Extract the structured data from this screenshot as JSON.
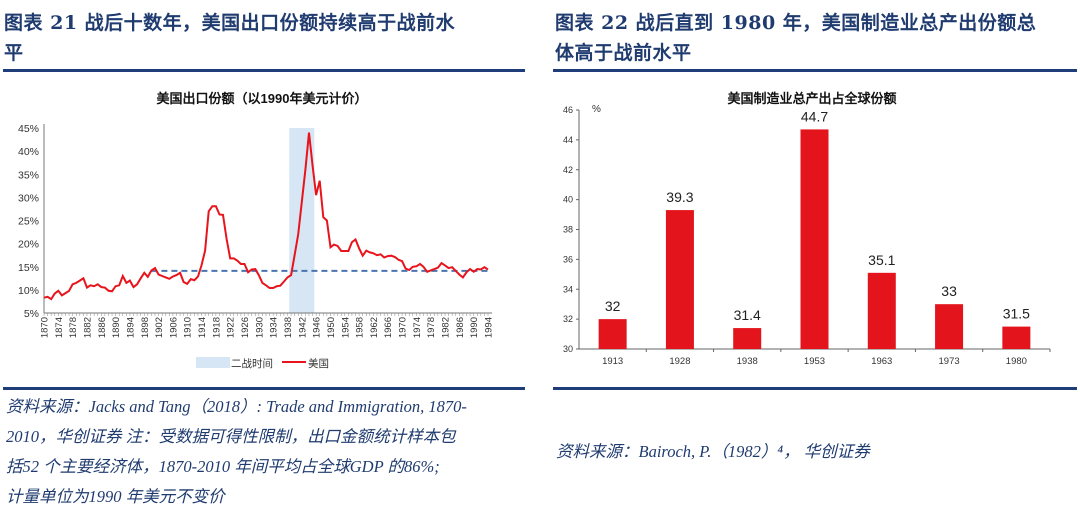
{
  "left": {
    "heading": "图表 21   战后十数年，美国出口份额持续高于战前水平",
    "heading_line1": "图表 21   战后十数年，美国出口份额持续高于战前水",
    "heading_line2": "平",
    "note_lines": [
      "资料来源：Jacks and Tang（2018）: Trade and Immigration, 1870-",
      "2010，华创证券   注：受数据可得性限制，出口金额统计样本包",
      "括52 个主要经济体，1870-2010 年间平均占全球GDP 的86%;",
      "计量单位为1990 年美元不变价"
    ]
  },
  "right": {
    "heading_line1": "图表 22   战后直到 1980 年，美国制造业总产出份额总",
    "heading_line2": "体高于战前水平",
    "source": "资料来源：Bairoch, P.（1982）⁴， 华创证券"
  },
  "colors": {
    "heading": "#1f3b6f",
    "rule": "#1f3e79",
    "line": "#e8141c",
    "bar": "#e3141c",
    "shade": "#d6e6f5",
    "dashed": "#4a74b0"
  },
  "chart_data": [
    {
      "type": "line",
      "title": "美国出口份额（以1990年美元计价）",
      "xlim": [
        1870,
        1994
      ],
      "ylim": [
        5,
        45
      ],
      "y_unit": "%",
      "yticks": [
        "5%",
        "10%",
        "15%",
        "20%",
        "25%",
        "30%",
        "35%",
        "40%",
        "45%"
      ],
      "xticks": [
        "1870",
        "1874",
        "1878",
        "1882",
        "1886",
        "1890",
        "1894",
        "1898",
        "1902",
        "1906",
        "1910",
        "1914",
        "1918",
        "1922",
        "1926",
        "1930",
        "1934",
        "1938",
        "1942",
        "1946",
        "1950",
        "1954",
        "1958",
        "1962",
        "1966",
        "1970",
        "1974",
        "1978",
        "1982",
        "1986",
        "1990",
        "1994"
      ],
      "grid": false,
      "legend_position": "bottom",
      "legend": [
        "二战时间",
        "美国"
      ],
      "shaded_range": {
        "name": "二战时间",
        "x": [
          1939,
          1945
        ]
      },
      "reference_line": {
        "y": 14.1,
        "x": [
          1900,
          1994
        ],
        "style": "dashed"
      },
      "series": [
        {
          "name": "美国",
          "x_start": 1870,
          "values": [
            8.3,
            8.5,
            8.0,
            9.2,
            9.8,
            8.8,
            9.3,
            9.8,
            11.2,
            11.5,
            12.0,
            12.5,
            10.5,
            11.0,
            10.8,
            11.2,
            10.6,
            10.5,
            9.8,
            9.7,
            10.8,
            11.0,
            13.0,
            11.5,
            12.0,
            10.6,
            11.2,
            12.5,
            13.7,
            12.8,
            14.2,
            14.7,
            13.3,
            13.0,
            12.7,
            12.4,
            12.9,
            13.2,
            13.7,
            11.7,
            11.3,
            12.3,
            12.1,
            12.9,
            15.3,
            18.5,
            27.0,
            28.1,
            28.1,
            26.3,
            26.2,
            21.0,
            16.8,
            16.8,
            16.3,
            15.6,
            15.6,
            13.8,
            14.4,
            14.5,
            13.2,
            11.5,
            11.0,
            10.4,
            10.4,
            10.8,
            10.9,
            11.8,
            12.7,
            13.2,
            17.5,
            22.0,
            29.0,
            36.0,
            44.0,
            37.0,
            30.5,
            33.6,
            25.7,
            25.0,
            19.2,
            19.8,
            19.5,
            18.4,
            18.4,
            18.4,
            20.3,
            20.9,
            19.0,
            17.4,
            18.5,
            18.1,
            17.9,
            17.5,
            17.7,
            17.0,
            17.3,
            17.4,
            17.1,
            16.5,
            16.2,
            14.6,
            14.3,
            15.0,
            15.1,
            15.6,
            15.0,
            13.9,
            14.2,
            14.5,
            14.8,
            15.8,
            15.3,
            14.7,
            14.9,
            14.1,
            13.3,
            12.7,
            13.8,
            14.5,
            13.9,
            14.5,
            14.4,
            14.9,
            14.4
          ]
        }
      ]
    },
    {
      "type": "bar",
      "title": "美国制造业总产出占全球份额",
      "ylabel": "%",
      "ylim": [
        30,
        46
      ],
      "yticks": [
        "30",
        "32",
        "34",
        "36",
        "38",
        "40",
        "42",
        "44",
        "46"
      ],
      "categories": [
        "1913",
        "1928",
        "1938",
        "1953",
        "1963",
        "1973",
        "1980"
      ],
      "values": [
        32,
        39.3,
        31.4,
        44.7,
        35.1,
        33,
        31.5
      ],
      "data_labels": [
        "32",
        "39.3",
        "31.4",
        "44.7",
        "35.1",
        "33",
        "31.5"
      ],
      "grid": false
    }
  ]
}
